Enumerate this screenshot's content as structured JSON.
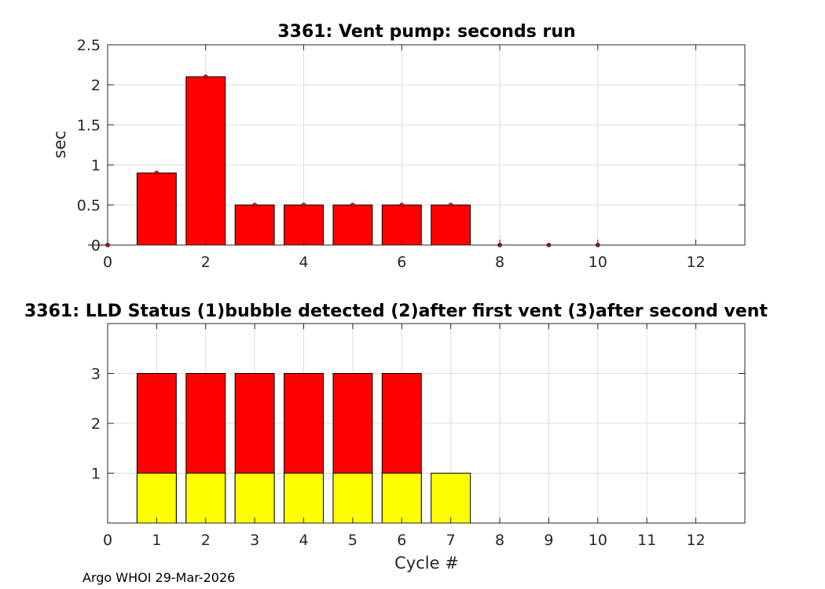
{
  "footer": "Argo WHOI 29-Mar-2026",
  "colors": {
    "red": "#ff0000",
    "yellow": "#ffff00",
    "grid": "#dcdcdc",
    "axis": "#262626"
  },
  "chart_data": [
    {
      "type": "bar",
      "title": "3361: Vent pump: seconds run",
      "xlabel": "",
      "ylabel": "sec",
      "xlim": [
        0,
        13
      ],
      "ylim": [
        0,
        2.5
      ],
      "xticks": [
        0,
        2,
        4,
        6,
        8,
        10,
        12
      ],
      "yticks": [
        0,
        0.5,
        1,
        1.5,
        2,
        2.5
      ],
      "grid": true,
      "x": [
        0,
        1,
        2,
        3,
        4,
        5,
        6,
        7,
        8,
        9,
        10
      ],
      "values": [
        0,
        0.9,
        2.1,
        0.5,
        0.5,
        0.5,
        0.5,
        0.5,
        0,
        0,
        0
      ],
      "bar_color": "#ff0000",
      "marker_color": "#ff0000"
    },
    {
      "type": "bar",
      "title": "3361: LLD Status   (1)bubble detected   (2)after first vent  (3)after second vent",
      "xlabel": "Cycle #",
      "ylabel": "",
      "xlim": [
        0,
        13
      ],
      "ylim": [
        0,
        4
      ],
      "xticks": [
        0,
        1,
        2,
        3,
        4,
        5,
        6,
        7,
        8,
        9,
        10,
        11,
        12
      ],
      "yticks": [
        1,
        2,
        3
      ],
      "grid": true,
      "x": [
        1,
        2,
        3,
        4,
        5,
        6,
        7
      ],
      "values": [
        3,
        3,
        3,
        3,
        3,
        3,
        1
      ],
      "series": [
        {
          "values": [
            3,
            3,
            3,
            3,
            3,
            3,
            0
          ],
          "color": "#ff0000"
        },
        {
          "values": [
            1,
            1,
            1,
            1,
            1,
            1,
            1
          ],
          "color": "#ffff00"
        }
      ]
    }
  ]
}
